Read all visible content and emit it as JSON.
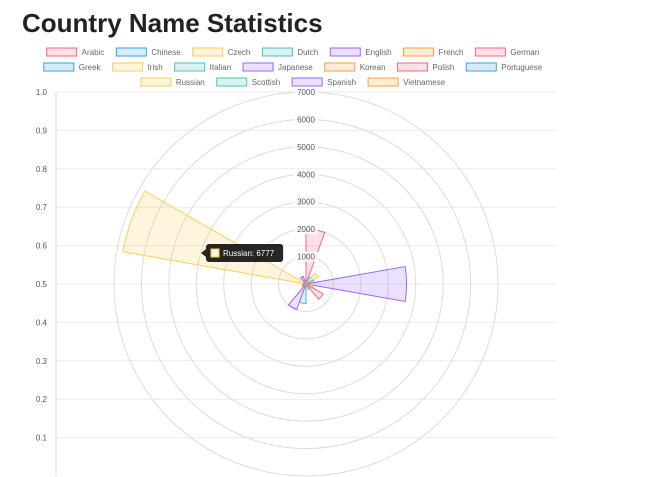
{
  "page": {
    "title": "Country Name Statistics"
  },
  "chart_data": {
    "type": "polarArea",
    "legend_position": "top",
    "series": [
      {
        "name": "Arabic",
        "value": 2000,
        "border": "#ff6384",
        "fill": "rgba(255,99,132,0.2)"
      },
      {
        "name": "Chinese",
        "value": 268,
        "border": "#36a2eb",
        "fill": "rgba(54,162,235,0.2)"
      },
      {
        "name": "Czech",
        "value": 519,
        "border": "#ffce56",
        "fill": "rgba(255,206,86,0.2)"
      },
      {
        "name": "Dutch",
        "value": 297,
        "border": "#4bc0c0",
        "fill": "rgba(75,192,192,0.2)"
      },
      {
        "name": "English",
        "value": 3668,
        "border": "#9966ff",
        "fill": "rgba(153,102,255,0.2)"
      },
      {
        "name": "French",
        "value": 277,
        "border": "#ff9f40",
        "fill": "rgba(255,159,64,0.2)"
      },
      {
        "name": "German",
        "value": 724,
        "border": "#ff6384",
        "fill": "rgba(255,99,132,0.2)"
      },
      {
        "name": "Greek",
        "value": 203,
        "border": "#36a2eb",
        "fill": "rgba(54,162,235,0.2)"
      },
      {
        "name": "Irish",
        "value": 232,
        "border": "#ffce56",
        "fill": "rgba(255,206,86,0.2)"
      },
      {
        "name": "Italian",
        "value": 709,
        "border": "#4bc0c0",
        "fill": "rgba(75,192,192,0.2)"
      },
      {
        "name": "Japanese",
        "value": 991,
        "border": "#9966ff",
        "fill": "rgba(153,102,255,0.2)"
      },
      {
        "name": "Korean",
        "value": 94,
        "border": "#ff9f40",
        "fill": "rgba(255,159,64,0.2)"
      },
      {
        "name": "Polish",
        "value": 139,
        "border": "#ff6384",
        "fill": "rgba(255,99,132,0.2)"
      },
      {
        "name": "Portuguese",
        "value": 74,
        "border": "#36a2eb",
        "fill": "rgba(54,162,235,0.2)"
      },
      {
        "name": "Russian",
        "value": 6777,
        "border": "#ffce56",
        "fill": "rgba(255,206,86,0.2)"
      },
      {
        "name": "Scottish",
        "value": 100,
        "border": "#4bc0c0",
        "fill": "rgba(75,192,192,0.2)"
      },
      {
        "name": "Spanish",
        "value": 298,
        "border": "#9966ff",
        "fill": "rgba(153,102,255,0.2)"
      },
      {
        "name": "Vietnamese",
        "value": 73,
        "border": "#ff9f40",
        "fill": "rgba(255,159,64,0.2)"
      }
    ],
    "y_axis": {
      "range": [
        0,
        1
      ],
      "ticks": [
        "1.0",
        "0.9",
        "0.8",
        "0.7",
        "0.6",
        "0.5",
        "0.4",
        "0.3",
        "0.2",
        "0.1"
      ]
    },
    "radial_axis": {
      "range": [
        0,
        7000
      ],
      "ticks": [
        "1000",
        "2000",
        "3000",
        "4000",
        "5000",
        "6000",
        "7000"
      ]
    },
    "tooltip": {
      "text": "Russian: 6777"
    }
  }
}
